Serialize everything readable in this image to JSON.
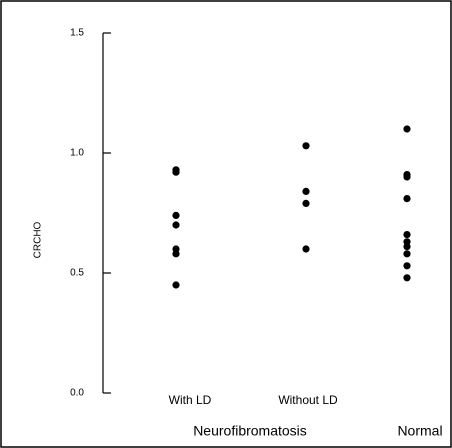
{
  "chart_data": {
    "type": "strip",
    "y_label": "CRCHO",
    "categories": [
      "With LD",
      "Without LD",
      "Normal"
    ],
    "group_label": "Neurofibromatosis",
    "values": [
      [
        0.93,
        0.92,
        0.74,
        0.7,
        0.6,
        0.58,
        0.45
      ],
      [
        1.03,
        0.84,
        0.79,
        0.6
      ],
      [
        1.1,
        0.91,
        0.9,
        0.81,
        0.66,
        0.63,
        0.61,
        0.58,
        0.53,
        0.48
      ]
    ],
    "color": "#000000",
    "ylim": [
      0,
      1.5
    ],
    "yticks": [
      {
        "value": 0,
        "label": "0.0"
      },
      0.5,
      {
        "value": 1,
        "label": "1.0"
      },
      1.5
    ]
  }
}
